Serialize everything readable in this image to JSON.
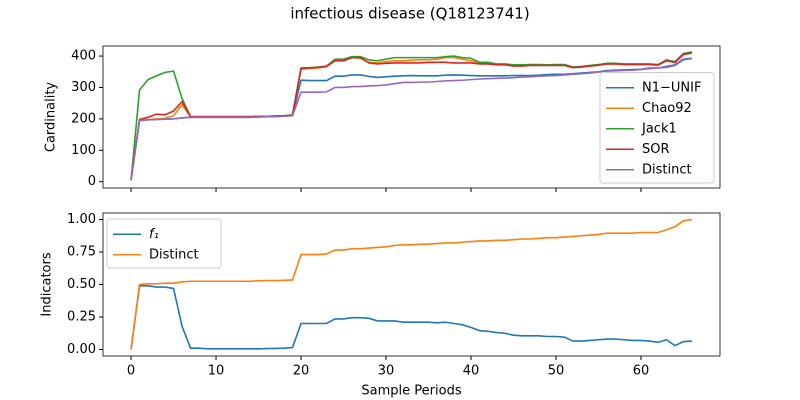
{
  "chart_data": [
    {
      "type": "line",
      "title": "infectious disease (Q18123741)",
      "y_label": "Cardinality",
      "x": [
        0,
        1,
        2,
        3,
        4,
        5,
        6,
        7,
        8,
        9,
        10,
        11,
        12,
        13,
        14,
        15,
        16,
        17,
        18,
        19,
        20,
        21,
        22,
        23,
        24,
        25,
        26,
        27,
        28,
        29,
        30,
        31,
        32,
        33,
        34,
        35,
        36,
        37,
        38,
        39,
        40,
        41,
        42,
        43,
        44,
        45,
        46,
        47,
        48,
        49,
        50,
        51,
        52,
        53,
        54,
        55,
        56,
        57,
        58,
        59,
        60,
        61,
        62,
        63,
        64,
        65,
        66
      ],
      "xlim": [
        -3.3,
        69.3
      ],
      "sharex": true,
      "ylim": [
        -20,
        432
      ],
      "yticks": [
        0,
        100,
        200,
        300,
        400
      ],
      "legend": "lower right",
      "series": [
        {
          "name": "N1−UNIF",
          "color": "#1f77b4",
          "values": [
            5,
            195,
            197,
            198,
            199,
            200,
            203,
            205,
            205,
            205,
            205,
            205,
            205,
            205,
            205,
            206,
            207,
            208,
            209,
            212,
            323,
            322,
            322,
            322,
            336,
            336,
            340,
            340,
            335,
            332,
            334,
            336,
            337,
            338,
            337,
            337,
            337,
            339,
            340,
            339,
            338,
            337,
            337,
            337,
            337,
            338,
            338,
            338,
            339,
            341,
            342,
            342,
            344,
            346,
            348,
            350,
            354,
            355,
            356,
            357,
            358,
            362,
            362,
            367,
            372,
            390,
            393
          ]
        },
        {
          "name": "Chao92",
          "color": "#ff7f0e",
          "values": [
            5,
            195,
            198,
            200,
            202,
            210,
            245,
            207,
            207,
            207,
            207,
            207,
            207,
            207,
            207,
            208,
            208,
            209,
            210,
            212,
            358,
            360,
            362,
            366,
            385,
            386,
            395,
            393,
            380,
            378,
            382,
            385,
            385,
            387,
            388,
            388,
            390,
            395,
            395,
            390,
            385,
            378,
            378,
            374,
            374,
            370,
            370,
            371,
            371,
            371,
            371,
            371,
            364,
            365,
            368,
            371,
            375,
            375,
            374,
            374,
            374,
            374,
            372,
            385,
            380,
            405,
            410
          ]
        },
        {
          "name": "Jack1",
          "color": "#2ca02c",
          "values": [
            5,
            292,
            325,
            337,
            348,
            352,
            265,
            207,
            207,
            207,
            207,
            207,
            207,
            207,
            207,
            208,
            208,
            209,
            210,
            213,
            362,
            363,
            365,
            368,
            390,
            390,
            398,
            398,
            388,
            385,
            390,
            395,
            395,
            395,
            395,
            395,
            395,
            398,
            400,
            395,
            393,
            380,
            380,
            375,
            375,
            372,
            372,
            373,
            373,
            372,
            373,
            373,
            365,
            367,
            370,
            373,
            377,
            377,
            375,
            375,
            375,
            375,
            373,
            388,
            382,
            408,
            413
          ]
        },
        {
          "name": "SOR",
          "color": "#d62728",
          "values": [
            5,
            198,
            205,
            215,
            213,
            225,
            255,
            207,
            207,
            207,
            207,
            207,
            207,
            207,
            207,
            208,
            208,
            209,
            210,
            212,
            360,
            362,
            364,
            367,
            385,
            385,
            395,
            395,
            378,
            375,
            377,
            378,
            378,
            378,
            378,
            380,
            380,
            380,
            378,
            378,
            378,
            375,
            375,
            372,
            372,
            368,
            368,
            370,
            370,
            370,
            370,
            370,
            363,
            365,
            368,
            371,
            375,
            375,
            373,
            373,
            373,
            373,
            371,
            385,
            380,
            405,
            410
          ]
        },
        {
          "name": "Distinct",
          "color": "#9467bd",
          "values": [
            5,
            195,
            197,
            198,
            199,
            200,
            203,
            205,
            205,
            205,
            205,
            205,
            205,
            205,
            205,
            206,
            207,
            207,
            208,
            210,
            285,
            285,
            285,
            286,
            300,
            300,
            303,
            303,
            305,
            306,
            308,
            312,
            316,
            316,
            317,
            317,
            319,
            321,
            322,
            323,
            325,
            327,
            328,
            329,
            330,
            331,
            333,
            334,
            336,
            337,
            338,
            340,
            342,
            344,
            346,
            349,
            352,
            353,
            354,
            355,
            357,
            360,
            362,
            364,
            370,
            388,
            392
          ]
        }
      ]
    },
    {
      "type": "line",
      "y_label": "Indicators",
      "x_label": "Sample Periods",
      "x": [
        0,
        1,
        2,
        3,
        4,
        5,
        6,
        7,
        8,
        9,
        10,
        11,
        12,
        13,
        14,
        15,
        16,
        17,
        18,
        19,
        20,
        21,
        22,
        23,
        24,
        25,
        26,
        27,
        28,
        29,
        30,
        31,
        32,
        33,
        34,
        35,
        36,
        37,
        38,
        39,
        40,
        41,
        42,
        43,
        44,
        45,
        46,
        47,
        48,
        49,
        50,
        51,
        52,
        53,
        54,
        55,
        56,
        57,
        58,
        59,
        60,
        61,
        62,
        63,
        64,
        65,
        66
      ],
      "xlim": [
        -3.3,
        69.3
      ],
      "xticks": [
        0,
        10,
        20,
        30,
        40,
        50,
        60
      ],
      "ylim": [
        -0.05,
        1.05
      ],
      "yticks": [
        {
          "value": 0,
          "label": "0.00"
        },
        {
          "value": 0.25,
          "label": "0.25"
        },
        {
          "value": 0.5,
          "label": "0.50"
        },
        {
          "value": 0.75,
          "label": "0.75"
        },
        {
          "value": 1,
          "label": "1.00"
        }
      ],
      "legend": "upper left",
      "series": [
        {
          "name": "f₁",
          "color": "#1f77b4",
          "values": [
            0,
            0.49,
            0.49,
            0.48,
            0.48,
            0.47,
            0.18,
            0.01,
            0.01,
            0.005,
            0.005,
            0.005,
            0.005,
            0.005,
            0.005,
            0.005,
            0.007,
            0.008,
            0.01,
            0.015,
            0.2,
            0.2,
            0.2,
            0.2,
            0.235,
            0.235,
            0.245,
            0.245,
            0.24,
            0.22,
            0.22,
            0.22,
            0.21,
            0.21,
            0.21,
            0.21,
            0.205,
            0.21,
            0.2,
            0.19,
            0.17,
            0.145,
            0.14,
            0.13,
            0.125,
            0.11,
            0.105,
            0.105,
            0.105,
            0.1,
            0.1,
            0.095,
            0.065,
            0.065,
            0.07,
            0.075,
            0.08,
            0.08,
            0.075,
            0.07,
            0.07,
            0.065,
            0.055,
            0.075,
            0.03,
            0.06,
            0.065
          ]
        },
        {
          "name": "Distinct",
          "color": "#ff7f0e",
          "values": [
            0,
            0.5,
            0.505,
            0.505,
            0.51,
            0.51,
            0.52,
            0.525,
            0.525,
            0.525,
            0.525,
            0.525,
            0.525,
            0.525,
            0.525,
            0.528,
            0.53,
            0.53,
            0.532,
            0.535,
            0.73,
            0.73,
            0.73,
            0.735,
            0.765,
            0.765,
            0.775,
            0.775,
            0.78,
            0.785,
            0.79,
            0.8,
            0.805,
            0.805,
            0.81,
            0.81,
            0.815,
            0.82,
            0.82,
            0.825,
            0.83,
            0.835,
            0.835,
            0.84,
            0.84,
            0.845,
            0.85,
            0.85,
            0.855,
            0.86,
            0.86,
            0.865,
            0.87,
            0.875,
            0.88,
            0.885,
            0.895,
            0.895,
            0.895,
            0.895,
            0.9,
            0.9,
            0.9,
            0.92,
            0.945,
            0.99,
            1.0
          ]
        }
      ]
    }
  ]
}
